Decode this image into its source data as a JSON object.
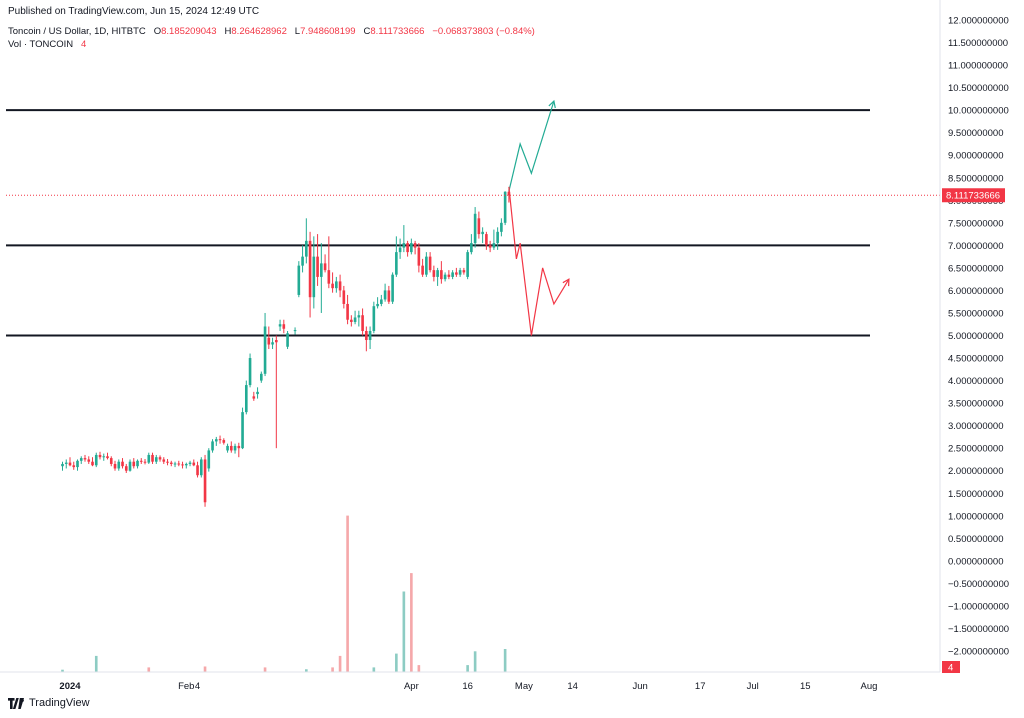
{
  "header": {
    "published": "Published on TradingView.com, Jun 15, 2024 12:49 UTC"
  },
  "legend": {
    "symbol": "Toncoin / US Dollar, 1D, HITBTC",
    "o_label": "O",
    "o_value": "8.185209043",
    "h_label": "H",
    "h_value": "8.264628962",
    "l_label": "L",
    "l_value": "7.948608199",
    "c_label": "C",
    "c_value": "8.111733666",
    "change": "−0.068373803 (−0.84%)",
    "vol_label": "Vol · TONCOIN",
    "vol_value": "4"
  },
  "footer": {
    "brand": "TradingView"
  },
  "colors": {
    "up": "#22ab94",
    "down": "#f23645",
    "vol_up": "#8dccc3",
    "vol_down": "#f5a8aa",
    "level_line": "#131722",
    "badge_price": "#f23645"
  },
  "chart_data": {
    "type": "candlestick",
    "title": "Toncoin / US Dollar, 1D, HITBTC",
    "xlabel": "",
    "ylabel": "",
    "ylim": [
      -2.2,
      12.05
    ],
    "y_ticks": [
      "12.000000000",
      "11.500000000",
      "11.000000000",
      "10.500000000",
      "10.000000000",
      "9.500000000",
      "9.000000000",
      "8.500000000",
      "8.000000000",
      "7.500000000",
      "7.000000000",
      "6.500000000",
      "6.000000000",
      "5.500000000",
      "5.000000000",
      "4.500000000",
      "4.000000000",
      "3.500000000",
      "3.000000000",
      "2.500000000",
      "2.000000000",
      "1.500000000",
      "1.000000000",
      "0.500000000",
      "0.000000000",
      "−0.500000000",
      "−1.000000000",
      "−1.500000000",
      "−2.000000000"
    ],
    "y_tick_values": [
      12,
      11.5,
      11,
      10.5,
      10,
      9.5,
      9,
      8.5,
      8,
      7.5,
      7,
      6.5,
      6,
      5.5,
      5,
      4.5,
      4,
      3.5,
      3,
      2.5,
      2,
      1.5,
      1,
      0.5,
      0,
      -0.5,
      -1,
      -1.5,
      -2
    ],
    "x_ticks": [
      {
        "label": "2024",
        "date": "2024-01-01",
        "bold": true
      },
      {
        "label": "Feb",
        "date": "2024-02-01",
        "bold": false
      },
      {
        "label": "4",
        "date": "2024-02-04",
        "bold": false
      },
      {
        "label": "Apr",
        "date": "2024-04-01",
        "bold": false
      },
      {
        "label": "16",
        "date": "2024-04-16",
        "bold": false
      },
      {
        "label": "May",
        "date": "2024-05-01",
        "bold": false
      },
      {
        "label": "14",
        "date": "2024-05-14",
        "bold": false
      },
      {
        "label": "Jun",
        "date": "2024-06-01",
        "bold": false
      },
      {
        "label": "17",
        "date": "2024-06-17",
        "bold": false
      },
      {
        "label": "Jul",
        "date": "2024-07-01",
        "bold": false
      },
      {
        "label": "15",
        "date": "2024-07-15",
        "bold": false
      },
      {
        "label": "Aug",
        "date": "2024-08-01",
        "bold": false
      }
    ],
    "last_price_label": "8.111733666",
    "last_price": 8.111733666,
    "volume_label": "4",
    "horizontal_levels": [
      10.0,
      7.0,
      5.0
    ],
    "candles": [
      {
        "date": "2023-12-30",
        "o": 2.1,
        "h": 2.2,
        "l": 2.0,
        "c": 2.15
      },
      {
        "date": "2023-12-31",
        "o": 2.15,
        "h": 2.25,
        "l": 2.05,
        "c": 2.18
      },
      {
        "date": "2024-01-01",
        "o": 2.18,
        "h": 2.3,
        "l": 2.1,
        "c": 2.12
      },
      {
        "date": "2024-01-02",
        "o": 2.12,
        "h": 2.2,
        "l": 2.02,
        "c": 2.08
      },
      {
        "date": "2024-01-03",
        "o": 2.08,
        "h": 2.25,
        "l": 2.0,
        "c": 2.22
      },
      {
        "date": "2024-01-04",
        "o": 2.22,
        "h": 2.32,
        "l": 2.15,
        "c": 2.28
      },
      {
        "date": "2024-01-05",
        "o": 2.28,
        "h": 2.35,
        "l": 2.2,
        "c": 2.25
      },
      {
        "date": "2024-01-06",
        "o": 2.25,
        "h": 2.32,
        "l": 2.15,
        "c": 2.2
      },
      {
        "date": "2024-01-07",
        "o": 2.2,
        "h": 2.3,
        "l": 2.1,
        "c": 2.12
      },
      {
        "date": "2024-01-08",
        "o": 2.12,
        "h": 2.4,
        "l": 2.08,
        "c": 2.35
      },
      {
        "date": "2024-01-09",
        "o": 2.35,
        "h": 2.42,
        "l": 2.25,
        "c": 2.3
      },
      {
        "date": "2024-01-10",
        "o": 2.3,
        "h": 2.38,
        "l": 2.22,
        "c": 2.32
      },
      {
        "date": "2024-01-11",
        "o": 2.32,
        "h": 2.4,
        "l": 2.25,
        "c": 2.28
      },
      {
        "date": "2024-01-12",
        "o": 2.28,
        "h": 2.32,
        "l": 2.1,
        "c": 2.15
      },
      {
        "date": "2024-01-13",
        "o": 2.15,
        "h": 2.22,
        "l": 2.0,
        "c": 2.05
      },
      {
        "date": "2024-01-14",
        "o": 2.05,
        "h": 2.25,
        "l": 2.0,
        "c": 2.2
      },
      {
        "date": "2024-01-15",
        "o": 2.2,
        "h": 2.28,
        "l": 2.05,
        "c": 2.1
      },
      {
        "date": "2024-01-16",
        "o": 2.1,
        "h": 2.15,
        "l": 1.95,
        "c": 2.0
      },
      {
        "date": "2024-01-17",
        "o": 2.0,
        "h": 2.25,
        "l": 1.98,
        "c": 2.2
      },
      {
        "date": "2024-01-18",
        "o": 2.2,
        "h": 2.28,
        "l": 2.05,
        "c": 2.1
      },
      {
        "date": "2024-01-19",
        "o": 2.1,
        "h": 2.25,
        "l": 2.05,
        "c": 2.22
      },
      {
        "date": "2024-01-20",
        "o": 2.22,
        "h": 2.28,
        "l": 2.15,
        "c": 2.2
      },
      {
        "date": "2024-01-21",
        "o": 2.2,
        "h": 2.26,
        "l": 2.14,
        "c": 2.18
      },
      {
        "date": "2024-01-22",
        "o": 2.18,
        "h": 2.4,
        "l": 2.15,
        "c": 2.35
      },
      {
        "date": "2024-01-23",
        "o": 2.35,
        "h": 2.4,
        "l": 2.15,
        "c": 2.2
      },
      {
        "date": "2024-01-24",
        "o": 2.2,
        "h": 2.35,
        "l": 2.15,
        "c": 2.3
      },
      {
        "date": "2024-01-25",
        "o": 2.3,
        "h": 2.34,
        "l": 2.2,
        "c": 2.25
      },
      {
        "date": "2024-01-26",
        "o": 2.25,
        "h": 2.3,
        "l": 2.15,
        "c": 2.2
      },
      {
        "date": "2024-01-27",
        "o": 2.2,
        "h": 2.26,
        "l": 2.12,
        "c": 2.18
      },
      {
        "date": "2024-01-28",
        "o": 2.18,
        "h": 2.22,
        "l": 2.1,
        "c": 2.15
      },
      {
        "date": "2024-01-29",
        "o": 2.15,
        "h": 2.2,
        "l": 2.08,
        "c": 2.16
      },
      {
        "date": "2024-01-30",
        "o": 2.16,
        "h": 2.22,
        "l": 2.1,
        "c": 2.14
      },
      {
        "date": "2024-01-31",
        "o": 2.14,
        "h": 2.2,
        "l": 2.05,
        "c": 2.12
      },
      {
        "date": "2024-02-01",
        "o": 2.12,
        "h": 2.18,
        "l": 2.05,
        "c": 2.15
      },
      {
        "date": "2024-02-02",
        "o": 2.15,
        "h": 2.22,
        "l": 2.1,
        "c": 2.18
      },
      {
        "date": "2024-02-03",
        "o": 2.18,
        "h": 2.25,
        "l": 2.1,
        "c": 2.12
      },
      {
        "date": "2024-02-04",
        "o": 2.12,
        "h": 2.2,
        "l": 1.85,
        "c": 1.9
      },
      {
        "date": "2024-02-05",
        "o": 1.9,
        "h": 2.3,
        "l": 1.85,
        "c": 2.25
      },
      {
        "date": "2024-02-06",
        "o": 2.25,
        "h": 2.35,
        "l": 1.2,
        "c": 1.3
      },
      {
        "date": "2024-02-07",
        "o": 2.05,
        "h": 2.5,
        "l": 1.98,
        "c": 2.45
      },
      {
        "date": "2024-02-08",
        "o": 2.45,
        "h": 2.7,
        "l": 2.4,
        "c": 2.65
      },
      {
        "date": "2024-02-09",
        "o": 2.65,
        "h": 2.75,
        "l": 2.55,
        "c": 2.7
      },
      {
        "date": "2024-02-10",
        "o": 2.7,
        "h": 2.78,
        "l": 2.6,
        "c": 2.68
      },
      {
        "date": "2024-02-11",
        "o": 2.68,
        "h": 2.72,
        "l": 2.58,
        "c": 2.62
      },
      {
        "date": "2024-02-12",
        "o": 2.45,
        "h": 2.6,
        "l": 2.4,
        "c": 2.55
      },
      {
        "date": "2024-02-13",
        "o": 2.55,
        "h": 2.65,
        "l": 2.4,
        "c": 2.45
      },
      {
        "date": "2024-02-14",
        "o": 2.45,
        "h": 2.6,
        "l": 2.38,
        "c": 2.55
      },
      {
        "date": "2024-02-15",
        "o": 2.55,
        "h": 2.62,
        "l": 2.3,
        "c": 2.5
      },
      {
        "date": "2024-02-16",
        "o": 2.5,
        "h": 3.4,
        "l": 2.48,
        "c": 3.3
      },
      {
        "date": "2024-02-17",
        "o": 3.3,
        "h": 4.0,
        "l": 3.25,
        "c": 3.9
      },
      {
        "date": "2024-02-18",
        "o": 3.9,
        "h": 4.6,
        "l": 3.85,
        "c": 4.5
      },
      {
        "date": "2024-02-19",
        "o": 3.65,
        "h": 3.75,
        "l": 3.55,
        "c": 3.6
      },
      {
        "date": "2024-02-20",
        "o": 3.7,
        "h": 3.85,
        "l": 3.6,
        "c": 3.75
      },
      {
        "date": "2024-02-21",
        "o": 4.0,
        "h": 4.2,
        "l": 3.95,
        "c": 4.15
      },
      {
        "date": "2024-02-22",
        "o": 4.15,
        "h": 5.5,
        "l": 4.1,
        "c": 5.2
      },
      {
        "date": "2024-02-23",
        "o": 4.95,
        "h": 5.2,
        "l": 4.7,
        "c": 4.8
      },
      {
        "date": "2024-02-24",
        "o": 4.8,
        "h": 4.95,
        "l": 4.7,
        "c": 4.85
      },
      {
        "date": "2024-02-25",
        "o": 4.9,
        "h": 5.0,
        "l": 2.5,
        "c": 4.85
      },
      {
        "date": "2024-02-26",
        "o": 5.2,
        "h": 5.35,
        "l": 5.1,
        "c": 5.25
      },
      {
        "date": "2024-02-27",
        "o": 5.25,
        "h": 5.35,
        "l": 5.05,
        "c": 5.15
      },
      {
        "date": "2024-02-28",
        "o": 4.75,
        "h": 5.1,
        "l": 4.7,
        "c": 5.05
      },
      {
        "date": "2024-03-01",
        "o": 5.1,
        "h": 5.18,
        "l": 5.02,
        "c": 5.12
      },
      {
        "date": "2024-03-02",
        "o": 5.9,
        "h": 6.65,
        "l": 5.85,
        "c": 6.55
      },
      {
        "date": "2024-03-03",
        "o": 6.55,
        "h": 7.0,
        "l": 6.4,
        "c": 6.75
      },
      {
        "date": "2024-03-04",
        "o": 6.75,
        "h": 7.6,
        "l": 6.6,
        "c": 7.1
      },
      {
        "date": "2024-03-05",
        "o": 7.1,
        "h": 7.3,
        "l": 5.4,
        "c": 5.85
      },
      {
        "date": "2024-03-06",
        "o": 5.85,
        "h": 7.2,
        "l": 5.6,
        "c": 6.75
      },
      {
        "date": "2024-03-07",
        "o": 6.75,
        "h": 7.25,
        "l": 6.1,
        "c": 6.3
      },
      {
        "date": "2024-03-08",
        "o": 6.3,
        "h": 7.05,
        "l": 5.5,
        "c": 6.6
      },
      {
        "date": "2024-03-09",
        "o": 6.6,
        "h": 6.8,
        "l": 6.4,
        "c": 6.45
      },
      {
        "date": "2024-03-10",
        "o": 6.45,
        "h": 7.2,
        "l": 6.05,
        "c": 6.15
      },
      {
        "date": "2024-03-11",
        "o": 6.15,
        "h": 6.4,
        "l": 5.95,
        "c": 6.05
      },
      {
        "date": "2024-03-12",
        "o": 6.05,
        "h": 6.3,
        "l": 5.95,
        "c": 6.2
      },
      {
        "date": "2024-03-13",
        "o": 6.2,
        "h": 6.35,
        "l": 5.85,
        "c": 6.0
      },
      {
        "date": "2024-03-14",
        "o": 6.0,
        "h": 6.1,
        "l": 5.6,
        "c": 5.7
      },
      {
        "date": "2024-03-15",
        "o": 5.7,
        "h": 5.9,
        "l": 5.25,
        "c": 5.35
      },
      {
        "date": "2024-03-16",
        "o": 5.35,
        "h": 5.45,
        "l": 5.2,
        "c": 5.3
      },
      {
        "date": "2024-03-17",
        "o": 5.3,
        "h": 5.55,
        "l": 5.25,
        "c": 5.4
      },
      {
        "date": "2024-03-18",
        "o": 5.4,
        "h": 5.55,
        "l": 5.2,
        "c": 5.45
      },
      {
        "date": "2024-03-19",
        "o": 5.45,
        "h": 5.6,
        "l": 5.0,
        "c": 5.1
      },
      {
        "date": "2024-03-20",
        "o": 5.1,
        "h": 5.2,
        "l": 4.65,
        "c": 4.9
      },
      {
        "date": "2024-03-21",
        "o": 4.9,
        "h": 5.2,
        "l": 4.7,
        "c": 5.1
      },
      {
        "date": "2024-03-22",
        "o": 5.1,
        "h": 5.75,
        "l": 5.05,
        "c": 5.65
      },
      {
        "date": "2024-03-23",
        "o": 5.65,
        "h": 5.85,
        "l": 5.6,
        "c": 5.7
      },
      {
        "date": "2024-03-24",
        "o": 5.7,
        "h": 5.9,
        "l": 5.65,
        "c": 5.8
      },
      {
        "date": "2024-03-25",
        "o": 5.8,
        "h": 6.15,
        "l": 5.75,
        "c": 6.0
      },
      {
        "date": "2024-03-26",
        "o": 6.0,
        "h": 6.1,
        "l": 5.7,
        "c": 5.75
      },
      {
        "date": "2024-03-27",
        "o": 5.75,
        "h": 6.4,
        "l": 5.7,
        "c": 6.35
      },
      {
        "date": "2024-03-28",
        "o": 6.35,
        "h": 7.2,
        "l": 6.3,
        "c": 6.85
      },
      {
        "date": "2024-03-29",
        "o": 6.85,
        "h": 7.15,
        "l": 6.7,
        "c": 6.95
      },
      {
        "date": "2024-03-30",
        "o": 6.95,
        "h": 7.45,
        "l": 6.85,
        "c": 7.05
      },
      {
        "date": "2024-03-31",
        "o": 7.05,
        "h": 7.1,
        "l": 6.75,
        "c": 6.85
      },
      {
        "date": "2024-04-01",
        "o": 6.85,
        "h": 7.15,
        "l": 6.8,
        "c": 7.05
      },
      {
        "date": "2024-04-02",
        "o": 7.05,
        "h": 7.1,
        "l": 6.8,
        "c": 6.95
      },
      {
        "date": "2024-04-03",
        "o": 6.95,
        "h": 7.05,
        "l": 6.4,
        "c": 6.55
      },
      {
        "date": "2024-04-04",
        "o": 6.55,
        "h": 6.7,
        "l": 6.3,
        "c": 6.35
      },
      {
        "date": "2024-04-05",
        "o": 6.35,
        "h": 6.85,
        "l": 6.3,
        "c": 6.75
      },
      {
        "date": "2024-04-06",
        "o": 6.75,
        "h": 6.85,
        "l": 6.4,
        "c": 6.45
      },
      {
        "date": "2024-04-07",
        "o": 6.45,
        "h": 6.55,
        "l": 6.2,
        "c": 6.3
      },
      {
        "date": "2024-04-08",
        "o": 6.3,
        "h": 6.5,
        "l": 6.1,
        "c": 6.45
      },
      {
        "date": "2024-04-09",
        "o": 6.45,
        "h": 6.65,
        "l": 6.15,
        "c": 6.25
      },
      {
        "date": "2024-04-10",
        "o": 6.25,
        "h": 6.4,
        "l": 6.2,
        "c": 6.35
      },
      {
        "date": "2024-04-11",
        "o": 6.35,
        "h": 6.45,
        "l": 6.25,
        "c": 6.3
      },
      {
        "date": "2024-04-12",
        "o": 6.3,
        "h": 6.45,
        "l": 6.25,
        "c": 6.4
      },
      {
        "date": "2024-04-13",
        "o": 6.4,
        "h": 6.5,
        "l": 6.3,
        "c": 6.35
      },
      {
        "date": "2024-04-14",
        "o": 6.35,
        "h": 6.5,
        "l": 6.3,
        "c": 6.45
      },
      {
        "date": "2024-04-15",
        "o": 6.45,
        "h": 6.5,
        "l": 6.35,
        "c": 6.4
      },
      {
        "date": "2024-04-16",
        "o": 6.3,
        "h": 6.9,
        "l": 6.25,
        "c": 6.85
      },
      {
        "date": "2024-04-17",
        "o": 6.85,
        "h": 7.25,
        "l": 6.8,
        "c": 7.05
      },
      {
        "date": "2024-04-18",
        "o": 7.05,
        "h": 7.85,
        "l": 6.95,
        "c": 7.7
      },
      {
        "date": "2024-04-19",
        "o": 7.6,
        "h": 7.75,
        "l": 7.15,
        "c": 7.25
      },
      {
        "date": "2024-04-20",
        "o": 7.25,
        "h": 7.4,
        "l": 7.05,
        "c": 7.3
      },
      {
        "date": "2024-04-21",
        "o": 7.25,
        "h": 7.3,
        "l": 6.9,
        "c": 7.0
      },
      {
        "date": "2024-04-22",
        "o": 7.0,
        "h": 7.1,
        "l": 6.85,
        "c": 6.95
      },
      {
        "date": "2024-04-23",
        "o": 6.95,
        "h": 7.35,
        "l": 6.9,
        "c": 7.05
      },
      {
        "date": "2024-04-24",
        "o": 7.05,
        "h": 7.4,
        "l": 6.9,
        "c": 7.3
      },
      {
        "date": "2024-04-25",
        "o": 7.3,
        "h": 7.6,
        "l": 7.2,
        "c": 7.5
      },
      {
        "date": "2024-04-26",
        "o": 7.5,
        "h": 8.2,
        "l": 7.45,
        "c": 8.19
      },
      {
        "date": "2024-04-27",
        "o": 8.19,
        "h": 8.26,
        "l": 7.95,
        "c": 8.11
      }
    ],
    "volumes": [
      {
        "date": "2023-12-30",
        "v": 0.05,
        "up": true
      },
      {
        "date": "2024-01-08",
        "v": 0.35,
        "up": true
      },
      {
        "date": "2024-01-22",
        "v": 0.1,
        "up": false
      },
      {
        "date": "2024-02-06",
        "v": 0.12,
        "up": false
      },
      {
        "date": "2024-02-22",
        "v": 0.1,
        "up": false
      },
      {
        "date": "2024-03-04",
        "v": 0.06,
        "up": true
      },
      {
        "date": "2024-03-11",
        "v": 0.1,
        "up": false
      },
      {
        "date": "2024-03-13",
        "v": 0.35,
        "up": false
      },
      {
        "date": "2024-03-15",
        "v": 3.4,
        "up": false
      },
      {
        "date": "2024-03-22",
        "v": 0.1,
        "up": true
      },
      {
        "date": "2024-03-28",
        "v": 0.4,
        "up": true
      },
      {
        "date": "2024-03-30",
        "v": 1.75,
        "up": true
      },
      {
        "date": "2024-04-01",
        "v": 2.15,
        "up": false
      },
      {
        "date": "2024-04-03",
        "v": 0.15,
        "up": false
      },
      {
        "date": "2024-04-16",
        "v": 0.15,
        "up": true
      },
      {
        "date": "2024-04-18",
        "v": 0.45,
        "up": true
      },
      {
        "date": "2024-04-26",
        "v": 0.5,
        "up": true
      }
    ],
    "projections": [
      {
        "name": "",
        "color": "#22ab94",
        "points": [
          [
            "2024-04-27",
            8.2
          ],
          [
            "2024-04-30",
            9.25
          ],
          [
            "2024-05-03",
            8.6
          ],
          [
            "2024-05-09",
            10.2
          ]
        ]
      },
      {
        "name": "",
        "color": "#f23645",
        "points": [
          [
            "2024-04-27",
            8.3
          ],
          [
            "2024-04-29",
            6.7
          ],
          [
            "2024-04-30",
            7.05
          ],
          [
            "2024-05-03",
            5.0
          ],
          [
            "2024-05-06",
            6.5
          ],
          [
            "2024-05-09",
            5.7
          ],
          [
            "2024-05-13",
            6.25
          ]
        ]
      }
    ]
  }
}
